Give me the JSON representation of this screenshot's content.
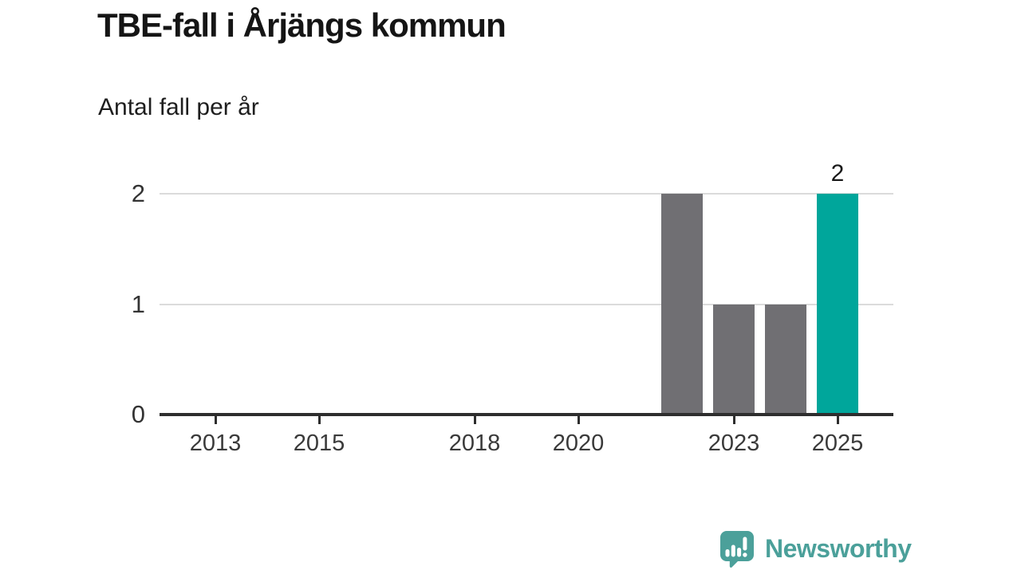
{
  "header": {
    "title": "TBE-fall i Årjängs kommun",
    "subtitle": "Antal fall per år"
  },
  "chart_data": {
    "type": "bar",
    "x": [
      2022,
      2023,
      2024,
      2025
    ],
    "values": [
      2,
      1,
      1,
      2
    ],
    "highlight_x": 2025,
    "data_labels": [
      {
        "x": 2025,
        "text": "2"
      }
    ],
    "x_ticks": [
      2013,
      2015,
      2018,
      2020,
      2023,
      2025
    ],
    "y_ticks": [
      0,
      1,
      2
    ],
    "ylim": [
      0,
      2
    ],
    "xlim": [
      2011.9,
      2026.1
    ],
    "grid": "horizontal",
    "legend": "none",
    "title": "TBE-fall i Årjängs kommun",
    "xlabel": "",
    "ylabel": "Antal fall per år",
    "colors": {
      "bar_default": "#706f73",
      "bar_highlight": "#00a69b",
      "gridline": "#dbdbdb",
      "axis": "#2e2e2e",
      "tick_text": "#3a3a3a"
    }
  },
  "footer": {
    "brand": "Newsworthy",
    "logo_icon": "newsworthy-speech-bubble-chart-icon",
    "brand_color": "#4ba09a"
  }
}
